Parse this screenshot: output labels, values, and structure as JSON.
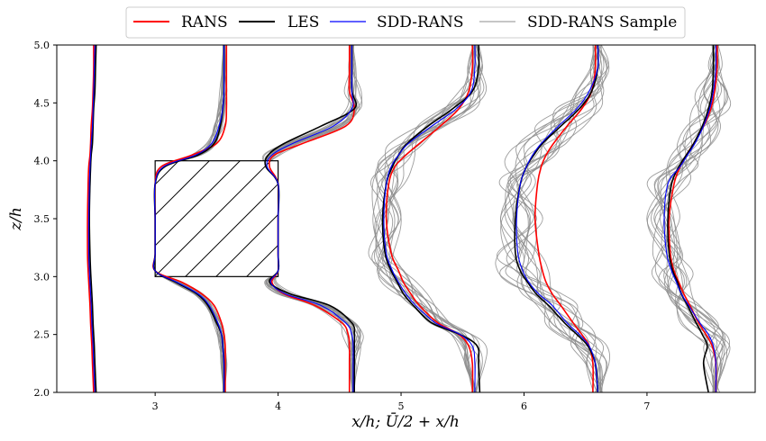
{
  "chart_data": {
    "type": "line",
    "title": "",
    "xlabel": "x/h;   Ū/2 + x/h",
    "ylabel": "z/h",
    "xlim": [
      2.2,
      7.88
    ],
    "ylim": [
      2.0,
      5.0
    ],
    "xticks": [
      3,
      4,
      5,
      6,
      7
    ],
    "xtick_labels": [
      "3",
      "4",
      "5",
      "6",
      "7"
    ],
    "yticks": [
      2.0,
      2.5,
      3.0,
      3.5,
      4.0,
      4.5,
      5.0
    ],
    "ytick_labels": [
      "2.0",
      "2.5",
      "3.0",
      "3.5",
      "4.0",
      "4.5",
      "5.0"
    ],
    "legend": {
      "position": "top-center-outside",
      "entries": [
        {
          "label": "RANS",
          "color": "#ff0000"
        },
        {
          "label": "LES",
          "color": "#000000"
        },
        {
          "label": "SDD-RANS",
          "color": "#0000ff"
        },
        {
          "label": "SDD-RANS Sample",
          "color": "#8c8c8c"
        }
      ]
    },
    "obstacle": {
      "x": [
        3.0,
        4.0
      ],
      "z": [
        3.0,
        4.0
      ],
      "hatch": true
    },
    "z_samples": [
      2.0,
      2.25,
      2.4,
      2.5,
      2.6,
      2.75,
      2.85,
      2.95,
      3.05,
      3.2,
      3.5,
      3.8,
      3.95,
      4.05,
      4.15,
      4.3,
      4.45,
      4.6,
      4.8,
      5.0
    ],
    "stations": [
      {
        "x0": 2.5,
        "RANS": [
          2.5,
          2.49,
          2.485,
          2.48,
          2.475,
          2.47,
          2.465,
          2.46,
          2.455,
          2.45,
          2.45,
          2.455,
          2.46,
          2.47,
          2.475,
          2.48,
          2.49,
          2.495,
          2.5,
          2.5
        ],
        "LES": [
          2.52,
          2.51,
          2.505,
          2.5,
          2.495,
          2.49,
          2.485,
          2.48,
          2.475,
          2.47,
          2.465,
          2.47,
          2.475,
          2.48,
          2.49,
          2.495,
          2.5,
          2.51,
          2.515,
          2.52
        ],
        "SDD-RANS": [
          2.51,
          2.5,
          2.495,
          2.49,
          2.485,
          2.48,
          2.475,
          2.47,
          2.465,
          2.46,
          2.46,
          2.465,
          2.47,
          2.475,
          2.48,
          2.49,
          2.495,
          2.5,
          2.505,
          2.51
        ]
      },
      {
        "x0": 3.5,
        "RANS": [
          3.57,
          3.57,
          3.57,
          3.56,
          3.54,
          3.48,
          3.38,
          3.22,
          3.0,
          3.0,
          3.0,
          3.0,
          3.05,
          3.3,
          3.5,
          3.57,
          3.58,
          3.58,
          3.58,
          3.58
        ],
        "LES": [
          3.56,
          3.56,
          3.55,
          3.54,
          3.5,
          3.43,
          3.34,
          3.17,
          3.0,
          3.0,
          3.0,
          3.0,
          3.08,
          3.35,
          3.48,
          3.53,
          3.55,
          3.56,
          3.56,
          3.56
        ],
        "SDD-RANS": [
          3.56,
          3.56,
          3.55,
          3.54,
          3.51,
          3.44,
          3.35,
          3.18,
          3.0,
          3.0,
          3.0,
          3.0,
          3.07,
          3.33,
          3.46,
          3.52,
          3.55,
          3.56,
          3.56,
          3.56
        ]
      },
      {
        "x0": 4.5,
        "RANS": [
          4.58,
          4.58,
          4.58,
          4.57,
          4.52,
          4.3,
          4.05,
          3.95,
          4.0,
          4.0,
          4.0,
          4.0,
          3.93,
          3.97,
          4.2,
          4.55,
          4.62,
          4.58,
          4.58,
          4.58
        ],
        "LES": [
          4.62,
          4.62,
          4.62,
          4.62,
          4.6,
          4.42,
          4.1,
          3.93,
          4.0,
          4.0,
          4.0,
          4.0,
          3.9,
          3.92,
          4.05,
          4.35,
          4.62,
          4.6,
          4.6,
          4.6
        ],
        "SDD-RANS": [
          4.61,
          4.61,
          4.61,
          4.6,
          4.55,
          4.35,
          4.06,
          3.94,
          4.0,
          4.0,
          4.0,
          4.0,
          3.91,
          3.95,
          4.12,
          4.45,
          4.6,
          4.6,
          4.6,
          4.6
        ]
      },
      {
        "x0": 5.5,
        "RANS": [
          5.58,
          5.58,
          5.55,
          5.47,
          5.3,
          5.15,
          5.08,
          5.02,
          4.98,
          4.92,
          4.88,
          4.9,
          4.95,
          5.04,
          5.15,
          5.32,
          5.47,
          5.55,
          5.58,
          5.58
        ],
        "LES": [
          5.64,
          5.63,
          5.62,
          5.48,
          5.25,
          5.1,
          5.02,
          4.97,
          4.92,
          4.87,
          4.85,
          4.88,
          4.93,
          4.98,
          5.05,
          5.22,
          5.42,
          5.58,
          5.63,
          5.63
        ],
        "SDD-RANS": [
          5.6,
          5.6,
          5.58,
          5.48,
          5.28,
          5.12,
          5.04,
          4.98,
          4.93,
          4.88,
          4.86,
          4.88,
          4.92,
          4.98,
          5.06,
          5.25,
          5.45,
          5.57,
          5.6,
          5.6
        ]
      },
      {
        "x0": 6.5,
        "RANS": [
          6.56,
          6.56,
          6.53,
          6.47,
          6.4,
          6.3,
          6.23,
          6.18,
          6.15,
          6.12,
          6.09,
          6.11,
          6.14,
          6.18,
          6.24,
          6.35,
          6.47,
          6.55,
          6.58,
          6.58
        ],
        "LES": [
          6.6,
          6.58,
          6.52,
          6.43,
          6.33,
          6.2,
          6.1,
          6.03,
          5.97,
          5.93,
          5.93,
          5.97,
          6.02,
          6.08,
          6.15,
          6.3,
          6.45,
          6.55,
          6.6,
          6.6
        ],
        "SDD-RANS": [
          6.6,
          6.58,
          6.53,
          6.45,
          6.35,
          6.23,
          6.12,
          6.04,
          5.99,
          5.95,
          5.94,
          5.97,
          6.02,
          6.07,
          6.14,
          6.28,
          6.43,
          6.53,
          6.6,
          6.6
        ]
      },
      {
        "x0": 7.5,
        "RANS": [
          7.56,
          7.56,
          7.53,
          7.48,
          7.42,
          7.35,
          7.3,
          7.26,
          7.22,
          7.19,
          7.18,
          7.22,
          7.27,
          7.32,
          7.38,
          7.46,
          7.52,
          7.55,
          7.57,
          7.57
        ],
        "LES": [
          7.5,
          7.46,
          7.49,
          7.45,
          7.4,
          7.33,
          7.28,
          7.25,
          7.21,
          7.18,
          7.17,
          7.2,
          7.26,
          7.32,
          7.38,
          7.45,
          7.5,
          7.53,
          7.54,
          7.54
        ],
        "SDD-RANS": [
          7.56,
          7.56,
          7.54,
          7.5,
          7.43,
          7.34,
          7.28,
          7.24,
          7.2,
          7.16,
          7.14,
          7.17,
          7.27,
          7.33,
          7.39,
          7.46,
          7.51,
          7.54,
          7.56,
          7.56
        ]
      }
    ]
  }
}
